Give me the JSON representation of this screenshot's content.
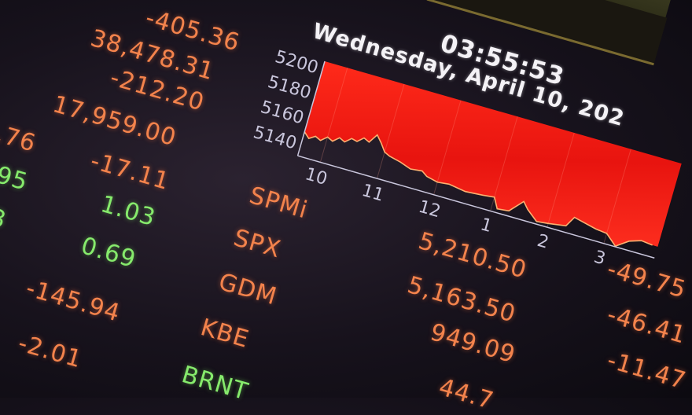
{
  "header": {
    "clock": "03:55:53",
    "date": "Wednesday, April 10, 202"
  },
  "chart": {
    "type": "area",
    "y_ticks": [
      "5200",
      "5180",
      "5160",
      "5140"
    ],
    "x_ticks": [
      "10",
      "11",
      "12",
      "1",
      "2",
      "3"
    ],
    "ylim": [
      5131,
      5206
    ],
    "fill_color": "#e8140f",
    "line_color": "#ffb070",
    "points": [
      [
        9.6,
        5150
      ],
      [
        9.7,
        5146
      ],
      [
        9.8,
        5149
      ],
      [
        9.9,
        5147
      ],
      [
        10.0,
        5151
      ],
      [
        10.1,
        5149
      ],
      [
        10.2,
        5153
      ],
      [
        10.3,
        5151
      ],
      [
        10.4,
        5155
      ],
      [
        10.5,
        5154
      ],
      [
        10.6,
        5158
      ],
      [
        10.7,
        5156
      ],
      [
        10.8,
        5163
      ],
      [
        10.9,
        5158
      ],
      [
        11.0,
        5152
      ],
      [
        11.1,
        5150
      ],
      [
        11.3,
        5148
      ],
      [
        11.5,
        5145
      ],
      [
        11.7,
        5146
      ],
      [
        11.8,
        5143
      ],
      [
        12.0,
        5141
      ],
      [
        12.2,
        5142
      ],
      [
        12.5,
        5140
      ],
      [
        12.8,
        5141
      ],
      [
        13.0,
        5142
      ],
      [
        13.1,
        5134
      ],
      [
        13.3,
        5135
      ],
      [
        13.5,
        5145
      ],
      [
        13.6,
        5140
      ],
      [
        13.8,
        5133
      ],
      [
        14.0,
        5134
      ],
      [
        14.3,
        5136
      ],
      [
        14.4,
        5144
      ],
      [
        14.6,
        5142
      ],
      [
        14.8,
        5140
      ],
      [
        15.0,
        5139
      ],
      [
        15.2,
        5131.5
      ],
      [
        15.4,
        5138
      ],
      [
        15.6,
        5141
      ],
      [
        15.8,
        5140
      ]
    ]
  },
  "left_values": [
    "-405.36",
    "38,478.31",
    "-212.20",
    "17,959.00",
    ".76",
    "-17.11",
    "95",
    "1.03",
    "3",
    "0.69",
    "-145.94",
    "-2.01"
  ],
  "tickers": [
    "SPMi",
    "SPX",
    "GDM",
    "KBE",
    "BRNT"
  ],
  "prices": [
    "5,210.50",
    "5,163.50",
    "949.09",
    "44.7"
  ],
  "changes": [
    "-49.75",
    "-46.41",
    "-11.47"
  ],
  "colors": {
    "down": "#f3834c",
    "up": "#86ea6c",
    "text": "#f4f2f6"
  }
}
